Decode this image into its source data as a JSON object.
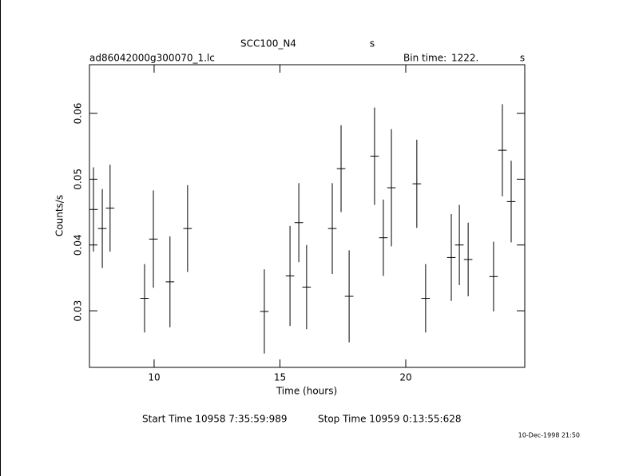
{
  "chart_data": {
    "type": "errorbar",
    "title": "SCC100_N4",
    "title_unit": "s",
    "file_name": "ad86042000g300070_1.lc",
    "bin_time_label": "Bin time:",
    "bin_time": "1222.",
    "bin_time_unit": "s",
    "xlabel": "Time (hours)",
    "ylabel": "Counts/s",
    "start_time": "Start Time 10958  7:35:59:989",
    "stop_time": "Stop Time 10959  0:13:55:628",
    "timestamp": "10-Dec-1998 21:50",
    "color": "#000000",
    "x_error": 0.17,
    "x": [
      7.59,
      7.94,
      8.25,
      9.62,
      9.97,
      10.63,
      11.33,
      14.38,
      15.4,
      15.75,
      16.06,
      17.08,
      17.43,
      17.75,
      18.76,
      19.11,
      19.43,
      20.44,
      20.79,
      21.81,
      22.13,
      22.48,
      23.49,
      23.84,
      24.19
    ],
    "series": [
      {
        "name": "Counts/s",
        "values": [
          0.0454,
          0.0425,
          0.0456,
          0.0319,
          0.0409,
          0.0344,
          0.0425,
          0.0299,
          0.0353,
          0.0434,
          0.0336,
          0.0425,
          0.0516,
          0.0322,
          0.0535,
          0.0411,
          0.0487,
          0.0493,
          0.0319,
          0.0381,
          0.04,
          0.0378,
          0.0352,
          0.0544,
          0.0466
        ],
        "errors": [
          0.0064,
          0.006,
          0.0066,
          0.0052,
          0.0074,
          0.0069,
          0.0066,
          0.0064,
          0.0076,
          0.006,
          0.0064,
          0.0069,
          0.0066,
          0.007,
          0.0074,
          0.0058,
          0.0089,
          0.0067,
          0.0052,
          0.0066,
          0.0061,
          0.0056,
          0.0053,
          0.007,
          0.0062
        ]
      }
    ],
    "xlim": [
      7.43,
      24.73
    ],
    "ylim": [
      0.0214,
      0.0674
    ],
    "xticks": [
      10,
      15,
      20
    ],
    "yticks": [
      0.03,
      0.04,
      0.05,
      0.06
    ]
  }
}
